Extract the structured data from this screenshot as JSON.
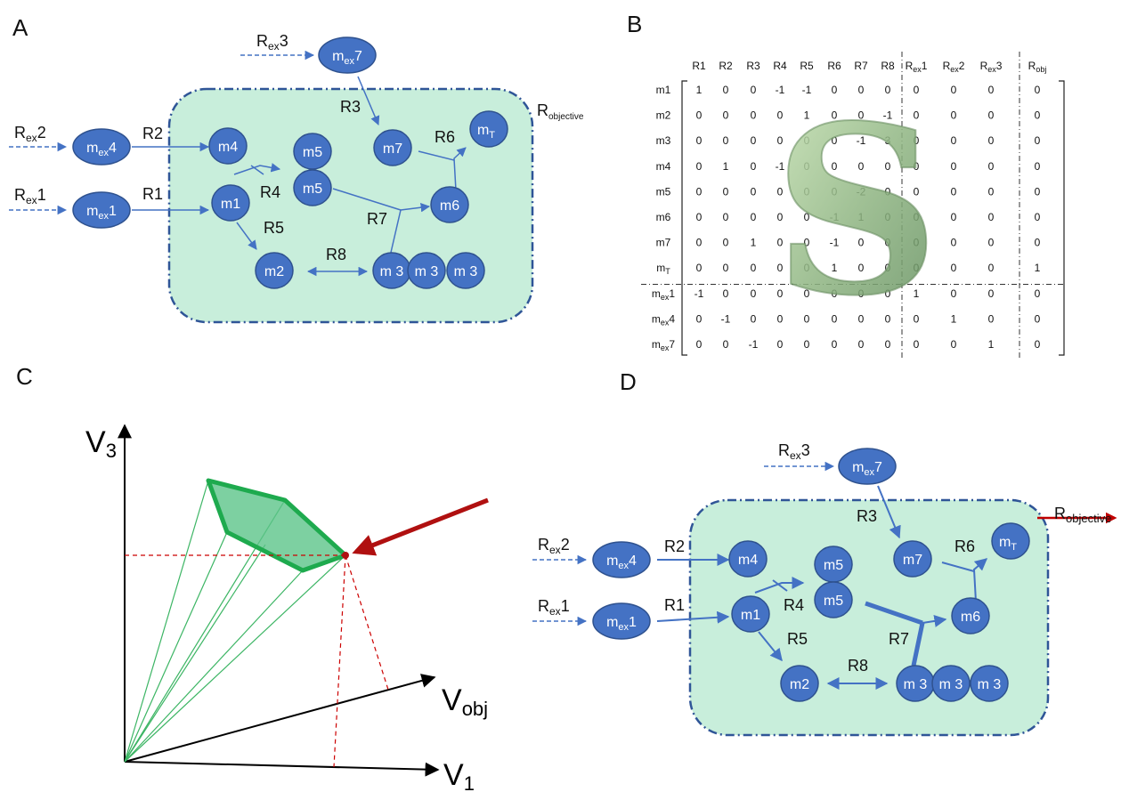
{
  "panels": {
    "a": "A",
    "b": "B",
    "c": "C",
    "d": "D"
  },
  "network": {
    "objective_label": "R",
    "objective_sub": "objective",
    "exchange_reactions": [
      {
        "id": "Rex1",
        "base": "R",
        "sub": "ex",
        "suffix": "1"
      },
      {
        "id": "Rex2",
        "base": "R",
        "sub": "ex",
        "suffix": "2"
      },
      {
        "id": "Rex3",
        "base": "R",
        "sub": "ex",
        "suffix": "3"
      }
    ],
    "reactions": {
      "r1": "R1",
      "r2": "R2",
      "r3": "R3",
      "r4": "R4",
      "r5": "R5",
      "r6": "R6",
      "r7": "R7",
      "r8": "R8"
    },
    "metabolites": {
      "mex1": {
        "base": "m",
        "sub": "ex",
        "suffix": "1"
      },
      "mex4": {
        "base": "m",
        "sub": "ex",
        "suffix": "4"
      },
      "mex7": {
        "base": "m",
        "sub": "ex",
        "suffix": "7"
      },
      "m1": "m1",
      "m2": "m2",
      "m3": "m 3",
      "m4": "m4",
      "m5": "m5",
      "m6": "m6",
      "m7": "m7",
      "mT": {
        "base": "m",
        "sub": "T"
      }
    },
    "colors": {
      "node": "#4472c4",
      "node_stroke": "#2f528f",
      "compartment": "#c8eedb",
      "compartment_stroke": "#2f5597",
      "arrow": "#4472c4",
      "objective_arrow": "#c00000"
    }
  },
  "matrix": {
    "overlay_letter": "S",
    "col_headers": [
      {
        "base": "R1"
      },
      {
        "base": "R2"
      },
      {
        "base": "R3"
      },
      {
        "base": "R4"
      },
      {
        "base": "R5"
      },
      {
        "base": "R6"
      },
      {
        "base": "R7"
      },
      {
        "base": "R8"
      },
      {
        "base": "R",
        "sub": "ex",
        "suffix": "1"
      },
      {
        "base": "R",
        "sub": "ex",
        "suffix": "2"
      },
      {
        "base": "R",
        "sub": "ex",
        "suffix": "3"
      },
      {
        "base": "R",
        "sub": "obj"
      }
    ],
    "row_headers": [
      {
        "base": "m1"
      },
      {
        "base": "m2"
      },
      {
        "base": "m3"
      },
      {
        "base": "m4"
      },
      {
        "base": "m5"
      },
      {
        "base": "m6"
      },
      {
        "base": "m7"
      },
      {
        "base": "m",
        "sub": "T"
      },
      {
        "base": "m",
        "sub": "ex",
        "suffix": "1"
      },
      {
        "base": "m",
        "sub": "ex",
        "suffix": "4"
      },
      {
        "base": "m",
        "sub": "ex",
        "suffix": "7"
      }
    ],
    "values": [
      [
        "1",
        "0",
        "0",
        "-1",
        "-1",
        "0",
        "0",
        "0",
        "0",
        "0",
        "0",
        "0"
      ],
      [
        "0",
        "0",
        "0",
        "0",
        "1",
        "0",
        "0",
        "-1",
        "0",
        "0",
        "0",
        "0"
      ],
      [
        "0",
        "0",
        "0",
        "0",
        "0",
        "0",
        "-1",
        "3",
        "0",
        "0",
        "0",
        "0"
      ],
      [
        "0",
        "1",
        "0",
        "-1",
        "0",
        "0",
        "0",
        "0",
        "0",
        "0",
        "0",
        "0"
      ],
      [
        "0",
        "0",
        "0",
        "0",
        "0",
        "0",
        "-2",
        "0",
        "0",
        "0",
        "0",
        "0"
      ],
      [
        "0",
        "0",
        "0",
        "0",
        "0",
        "-1",
        "1",
        "0",
        "0",
        "0",
        "0",
        "0"
      ],
      [
        "0",
        "0",
        "1",
        "0",
        "0",
        "-1",
        "0",
        "0",
        "0",
        "0",
        "0",
        "0"
      ],
      [
        "0",
        "0",
        "0",
        "0",
        "0",
        "1",
        "0",
        "0",
        "0",
        "0",
        "0",
        "1"
      ],
      [
        "-1",
        "0",
        "0",
        "0",
        "0",
        "0",
        "0",
        "0",
        "1",
        "0",
        "0",
        "0"
      ],
      [
        "0",
        "-1",
        "0",
        "0",
        "0",
        "0",
        "0",
        "0",
        "0",
        "1",
        "0",
        "0"
      ],
      [
        "0",
        "0",
        "-1",
        "0",
        "0",
        "0",
        "0",
        "0",
        "0",
        "0",
        "1",
        "0"
      ]
    ]
  },
  "flux_cone": {
    "axis_v3": {
      "base": "V",
      "sub": "3"
    },
    "axis_v1": {
      "base": "V",
      "sub": "1"
    },
    "axis_vobj": {
      "base": "V",
      "sub": "obj"
    },
    "colors": {
      "polygon_fill": "#5cc48a",
      "polygon_stroke": "#1eaa4e",
      "rays": "#3cb564",
      "guides": "#cc0000",
      "arrow": "#b01010"
    }
  }
}
